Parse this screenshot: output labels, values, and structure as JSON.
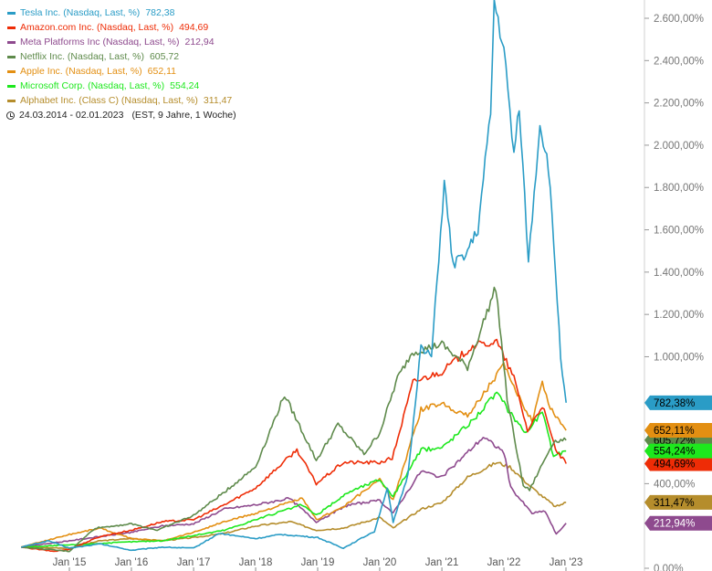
{
  "chart_data": {
    "type": "line",
    "ylim": [
      0,
      2700
    ],
    "y_ticks": [
      {
        "value": 0,
        "label": "0,00%"
      },
      {
        "value": 400,
        "label": "400,00%"
      },
      {
        "value": 1000,
        "label": "1.000,00%"
      },
      {
        "value": 1200,
        "label": "1.200,00%"
      },
      {
        "value": 1400,
        "label": "1.400,00%"
      },
      {
        "value": 1600,
        "label": "1.600,00%"
      },
      {
        "value": 1800,
        "label": "1.800,00%"
      },
      {
        "value": 2000,
        "label": "2.000,00%"
      },
      {
        "value": 2200,
        "label": "2.200,00%"
      },
      {
        "value": 2400,
        "label": "2.400,00%"
      },
      {
        "value": 2600,
        "label": "2.600,00%"
      }
    ],
    "x_ticks": [
      {
        "date": "2015-01-01",
        "label": "Jan '15"
      },
      {
        "date": "2016-01-01",
        "label": "Jan '16"
      },
      {
        "date": "2017-01-01",
        "label": "Jan '17"
      },
      {
        "date": "2018-01-01",
        "label": "Jan '18"
      },
      {
        "date": "2019-01-01",
        "label": "Jan '19"
      },
      {
        "date": "2020-01-01",
        "label": "Jan '20"
      },
      {
        "date": "2021-01-01",
        "label": "Jan '21"
      },
      {
        "date": "2022-01-01",
        "label": "Jan '22"
      },
      {
        "date": "2023-01-01",
        "label": "Jan '23"
      }
    ],
    "date_range": "24.03.2014 - 02.01.2023",
    "range_note": "(EST, 9 Jahre, 1 Woche)",
    "legend_placement": "top-left",
    "series": [
      {
        "name": "Tesla Inc. (Nasdaq, Last, %)",
        "last": "782,38",
        "badge": "782,38%",
        "color": "#2a9cc6",
        "badge_text_color": "#000000",
        "points": [
          [
            "2014-03-24",
            100
          ],
          [
            "2014-09-01",
            130
          ],
          [
            "2015-01-01",
            95
          ],
          [
            "2015-07-01",
            115
          ],
          [
            "2016-01-01",
            85
          ],
          [
            "2016-07-01",
            100
          ],
          [
            "2017-01-01",
            95
          ],
          [
            "2017-06-01",
            165
          ],
          [
            "2018-01-01",
            140
          ],
          [
            "2018-06-01",
            160
          ],
          [
            "2019-01-01",
            145
          ],
          [
            "2019-06-01",
            95
          ],
          [
            "2019-12-01",
            175
          ],
          [
            "2020-02-15",
            380
          ],
          [
            "2020-03-20",
            215
          ],
          [
            "2020-06-15",
            440
          ],
          [
            "2020-08-31",
            1050
          ],
          [
            "2020-11-01",
            1000
          ],
          [
            "2021-01-15",
            1820
          ],
          [
            "2021-03-08",
            1430
          ],
          [
            "2021-06-01",
            1500
          ],
          [
            "2021-08-01",
            1600
          ],
          [
            "2021-10-15",
            2150
          ],
          [
            "2021-11-05",
            2680
          ],
          [
            "2022-01-01",
            2450
          ],
          [
            "2022-03-01",
            1950
          ],
          [
            "2022-04-01",
            2200
          ],
          [
            "2022-05-25",
            1450
          ],
          [
            "2022-08-01",
            2100
          ],
          [
            "2022-09-20",
            1900
          ],
          [
            "2022-11-01",
            1400
          ],
          [
            "2022-12-01",
            1000
          ],
          [
            "2023-01-02",
            782.38
          ]
        ]
      },
      {
        "name": "Amazon.com Inc. (Nasdaq, Last, %)",
        "last": "494,69",
        "badge": "494,69%",
        "color": "#ee2c06",
        "badge_text_color": "#000000",
        "points": [
          [
            "2014-03-24",
            100
          ],
          [
            "2014-10-01",
            80
          ],
          [
            "2015-01-01",
            90
          ],
          [
            "2015-07-01",
            150
          ],
          [
            "2016-01-01",
            180
          ],
          [
            "2016-07-01",
            220
          ],
          [
            "2017-01-01",
            230
          ],
          [
            "2017-07-01",
            300
          ],
          [
            "2018-01-01",
            380
          ],
          [
            "2018-09-01",
            560
          ],
          [
            "2018-12-24",
            400
          ],
          [
            "2019-06-01",
            500
          ],
          [
            "2020-01-01",
            500
          ],
          [
            "2020-03-15",
            520
          ],
          [
            "2020-07-15",
            880
          ],
          [
            "2021-01-01",
            930
          ],
          [
            "2021-07-01",
            1050
          ],
          [
            "2021-11-20",
            1070
          ],
          [
            "2022-03-01",
            900
          ],
          [
            "2022-05-20",
            650
          ],
          [
            "2022-08-15",
            770
          ],
          [
            "2022-11-01",
            560
          ],
          [
            "2023-01-02",
            494.69
          ]
        ]
      },
      {
        "name": "Meta Platforms Inc (Nasdaq, Last, %)",
        "last": "212,94",
        "badge": "212,94%",
        "color": "#8e4a8e",
        "badge_text_color": "#ffffff",
        "points": [
          [
            "2014-03-24",
            100
          ],
          [
            "2015-01-01",
            130
          ],
          [
            "2016-01-01",
            170
          ],
          [
            "2016-07-01",
            200
          ],
          [
            "2017-01-01",
            210
          ],
          [
            "2017-07-01",
            280
          ],
          [
            "2018-01-01",
            300
          ],
          [
            "2018-07-20",
            330
          ],
          [
            "2018-12-24",
            220
          ],
          [
            "2019-07-01",
            300
          ],
          [
            "2020-01-01",
            320
          ],
          [
            "2020-03-20",
            260
          ],
          [
            "2020-09-01",
            460
          ],
          [
            "2021-01-01",
            430
          ],
          [
            "2021-09-01",
            620
          ],
          [
            "2022-01-01",
            550
          ],
          [
            "2022-02-10",
            380
          ],
          [
            "2022-06-15",
            260
          ],
          [
            "2022-09-01",
            270
          ],
          [
            "2022-11-05",
            160
          ],
          [
            "2023-01-02",
            212.94
          ]
        ]
      },
      {
        "name": "Netflix Inc. (Nasdaq, Last, %)",
        "last": "605,72",
        "badge": "605,72%",
        "color": "#5e8a4b",
        "badge_text_color": "#000000",
        "points": [
          [
            "2014-03-24",
            100
          ],
          [
            "2015-01-01",
            80
          ],
          [
            "2015-06-01",
            190
          ],
          [
            "2016-01-01",
            210
          ],
          [
            "2016-06-01",
            180
          ],
          [
            "2017-01-01",
            250
          ],
          [
            "2017-07-01",
            360
          ],
          [
            "2018-01-01",
            480
          ],
          [
            "2018-06-20",
            820
          ],
          [
            "2018-12-24",
            510
          ],
          [
            "2019-05-01",
            680
          ],
          [
            "2019-10-01",
            540
          ],
          [
            "2020-01-01",
            640
          ],
          [
            "2020-04-15",
            900
          ],
          [
            "2020-07-10",
            1020
          ],
          [
            "2021-01-01",
            1060
          ],
          [
            "2021-06-01",
            950
          ],
          [
            "2021-11-15",
            1330
          ],
          [
            "2022-01-20",
            800
          ],
          [
            "2022-04-25",
            390
          ],
          [
            "2022-06-01",
            370
          ],
          [
            "2022-10-20",
            600
          ],
          [
            "2023-01-02",
            605.72
          ]
        ]
      },
      {
        "name": "Apple Inc. (Nasdaq, Last, %)",
        "last": "652,11",
        "badge": "652,11%",
        "color": "#e38f12",
        "badge_text_color": "#000000",
        "points": [
          [
            "2014-03-24",
            100
          ],
          [
            "2015-01-01",
            160
          ],
          [
            "2015-07-01",
            190
          ],
          [
            "2016-01-01",
            140
          ],
          [
            "2016-07-01",
            130
          ],
          [
            "2017-01-01",
            170
          ],
          [
            "2017-07-01",
            220
          ],
          [
            "2018-01-01",
            260
          ],
          [
            "2018-10-01",
            330
          ],
          [
            "2018-12-24",
            230
          ],
          [
            "2019-06-01",
            290
          ],
          [
            "2020-01-01",
            420
          ],
          [
            "2020-03-20",
            320
          ],
          [
            "2020-08-31",
            750
          ],
          [
            "2021-01-01",
            780
          ],
          [
            "2021-06-01",
            720
          ],
          [
            "2021-12-31",
            960
          ],
          [
            "2022-03-01",
            850
          ],
          [
            "2022-06-15",
            700
          ],
          [
            "2022-08-15",
            880
          ],
          [
            "2022-10-01",
            760
          ],
          [
            "2023-01-02",
            652.11
          ]
        ]
      },
      {
        "name": "Microsoft Corp. (Nasdaq, Last, %)",
        "last": "554,24",
        "badge": "554,24%",
        "color": "#1de81d",
        "badge_text_color": "#000000",
        "points": [
          [
            "2014-03-24",
            100
          ],
          [
            "2015-01-01",
            110
          ],
          [
            "2016-01-01",
            125
          ],
          [
            "2016-07-01",
            130
          ],
          [
            "2017-01-01",
            155
          ],
          [
            "2017-07-01",
            180
          ],
          [
            "2018-01-01",
            230
          ],
          [
            "2018-10-01",
            300
          ],
          [
            "2018-12-24",
            250
          ],
          [
            "2019-07-01",
            360
          ],
          [
            "2020-01-01",
            420
          ],
          [
            "2020-03-20",
            340
          ],
          [
            "2020-09-01",
            560
          ],
          [
            "2021-01-01",
            570
          ],
          [
            "2021-07-01",
            700
          ],
          [
            "2021-11-20",
            830
          ],
          [
            "2022-01-25",
            750
          ],
          [
            "2022-05-10",
            640
          ],
          [
            "2022-08-15",
            740
          ],
          [
            "2022-10-20",
            530
          ],
          [
            "2023-01-02",
            554.24
          ]
        ]
      },
      {
        "name": "Alphabet Inc. (Class C) (Nasdaq, Last, %)",
        "last": "311,47",
        "badge": "311,47%",
        "color": "#b58d2c",
        "badge_text_color": "#000000",
        "points": [
          [
            "2014-03-24",
            100
          ],
          [
            "2015-01-01",
            95
          ],
          [
            "2015-07-01",
            130
          ],
          [
            "2016-01-01",
            140
          ],
          [
            "2016-07-01",
            130
          ],
          [
            "2017-01-01",
            145
          ],
          [
            "2017-07-01",
            165
          ],
          [
            "2018-01-01",
            200
          ],
          [
            "2018-07-25",
            220
          ],
          [
            "2018-12-24",
            180
          ],
          [
            "2019-06-01",
            190
          ],
          [
            "2020-01-01",
            240
          ],
          [
            "2020-03-20",
            190
          ],
          [
            "2020-09-01",
            280
          ],
          [
            "2021-01-01",
            310
          ],
          [
            "2021-06-01",
            430
          ],
          [
            "2021-11-20",
            500
          ],
          [
            "2022-02-05",
            480
          ],
          [
            "2022-06-15",
            380
          ],
          [
            "2022-11-01",
            290
          ],
          [
            "2023-01-02",
            311.47
          ]
        ]
      }
    ]
  }
}
